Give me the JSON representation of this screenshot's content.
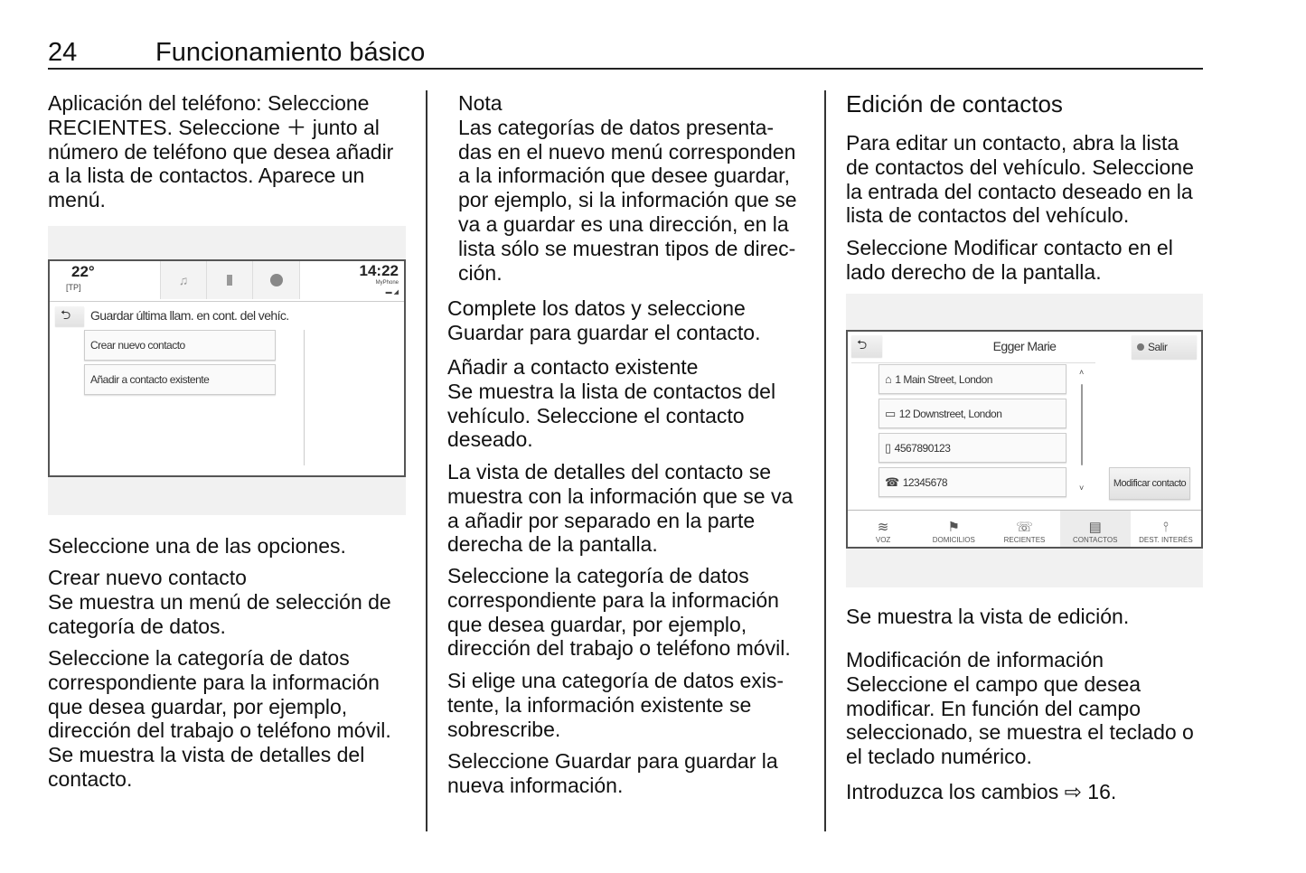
{
  "header": {
    "page_number": "24",
    "title": "Funcionamiento básico"
  },
  "col1": {
    "p1": [
      "Aplicación del teléfono: Seleccione",
      "RECIENTES. Seleccione ＋ junto al",
      "número de teléfono que desea añadir",
      "a la lista de contactos. Aparece un",
      "menú."
    ],
    "p2": [
      "Seleccione una de las opciones."
    ],
    "p3": [
      "Crear nuevo contacto",
      "Se muestra un menú de selección de",
      "categoría de datos."
    ],
    "p4": [
      "Seleccione la categoría de datos",
      "correspondiente para la información",
      "que desea guardar, por ejemplo,",
      "dirección del trabajo o teléfono móvil.",
      "Se muestra la vista de detalles del",
      "contacto."
    ]
  },
  "col2": {
    "nota": [
      "Nota",
      "Las categorías de datos presenta-",
      "das en el nuevo menú corresponden",
      "a la información que desee guardar,",
      "por ejemplo, si la información que se",
      "va a guardar es una dirección, en la",
      "lista sólo se muestran tipos de direc-",
      "ción."
    ],
    "p1": [
      "Complete los datos y seleccione",
      "Guardar para guardar el contacto."
    ],
    "p2": [
      "Añadir a contacto existente",
      "Se muestra la lista de contactos del",
      "vehículo. Seleccione el contacto",
      "deseado."
    ],
    "p3": [
      "La vista de detalles del contacto se",
      "muestra con la información que se va",
      "a añadir por separado en la parte",
      "derecha de la pantalla."
    ],
    "p4": [
      "Seleccione la categoría de datos",
      "correspondiente para la información",
      "que desea guardar, por ejemplo,",
      "dirección del trabajo o teléfono móvil."
    ],
    "p5": [
      "Si elige una categoría de datos exis-",
      "tente, la información existente se",
      "sobrescribe."
    ],
    "p6": [
      "Seleccione Guardar para guardar la",
      "nueva información."
    ]
  },
  "col3": {
    "heading": "Edición de contactos",
    "p1": [
      "Para editar un contacto, abra la lista",
      "de contactos del vehículo. Seleccione",
      "la entrada del contacto deseado en la",
      "lista de contactos del vehículo."
    ],
    "p2": [
      "Seleccione Modificar contacto en el",
      "lado derecho de la pantalla."
    ],
    "p3": [
      "Se muestra la vista de edición."
    ],
    "p4": [
      "Modificación de información",
      "Seleccione el campo que desea",
      "modificar. En función del campo",
      "seleccionado, se muestra el teclado o",
      "el teclado numérico."
    ],
    "p5": [
      "Introduzca los cambios ⇨ 16."
    ]
  },
  "screen1": {
    "temperature": "22°",
    "tp": "[TP]",
    "time": "14:22",
    "phone_name": "MyPhone",
    "title": "Guardar última llam. en cont. del vehíc.",
    "options": [
      "Crear nuevo contacto",
      "Añadir a contacto existente"
    ]
  },
  "screen2": {
    "title": "Egger Marie",
    "exit": "Salir",
    "entries": [
      {
        "icon": "home-icon",
        "text": "1 Main Street, London"
      },
      {
        "icon": "briefcase-icon",
        "text": "12 Downstreet, London"
      },
      {
        "icon": "mobile-phone-icon",
        "text": "4567890123"
      },
      {
        "icon": "phone-icon",
        "text": "12345678"
      }
    ],
    "modify": "Modificar contacto",
    "nav": [
      "VOZ",
      "DOMICILIOS",
      "RECIENTES",
      "CONTACTOS",
      "DEST. INTERÉS"
    ],
    "active_nav": "CONTACTOS"
  }
}
